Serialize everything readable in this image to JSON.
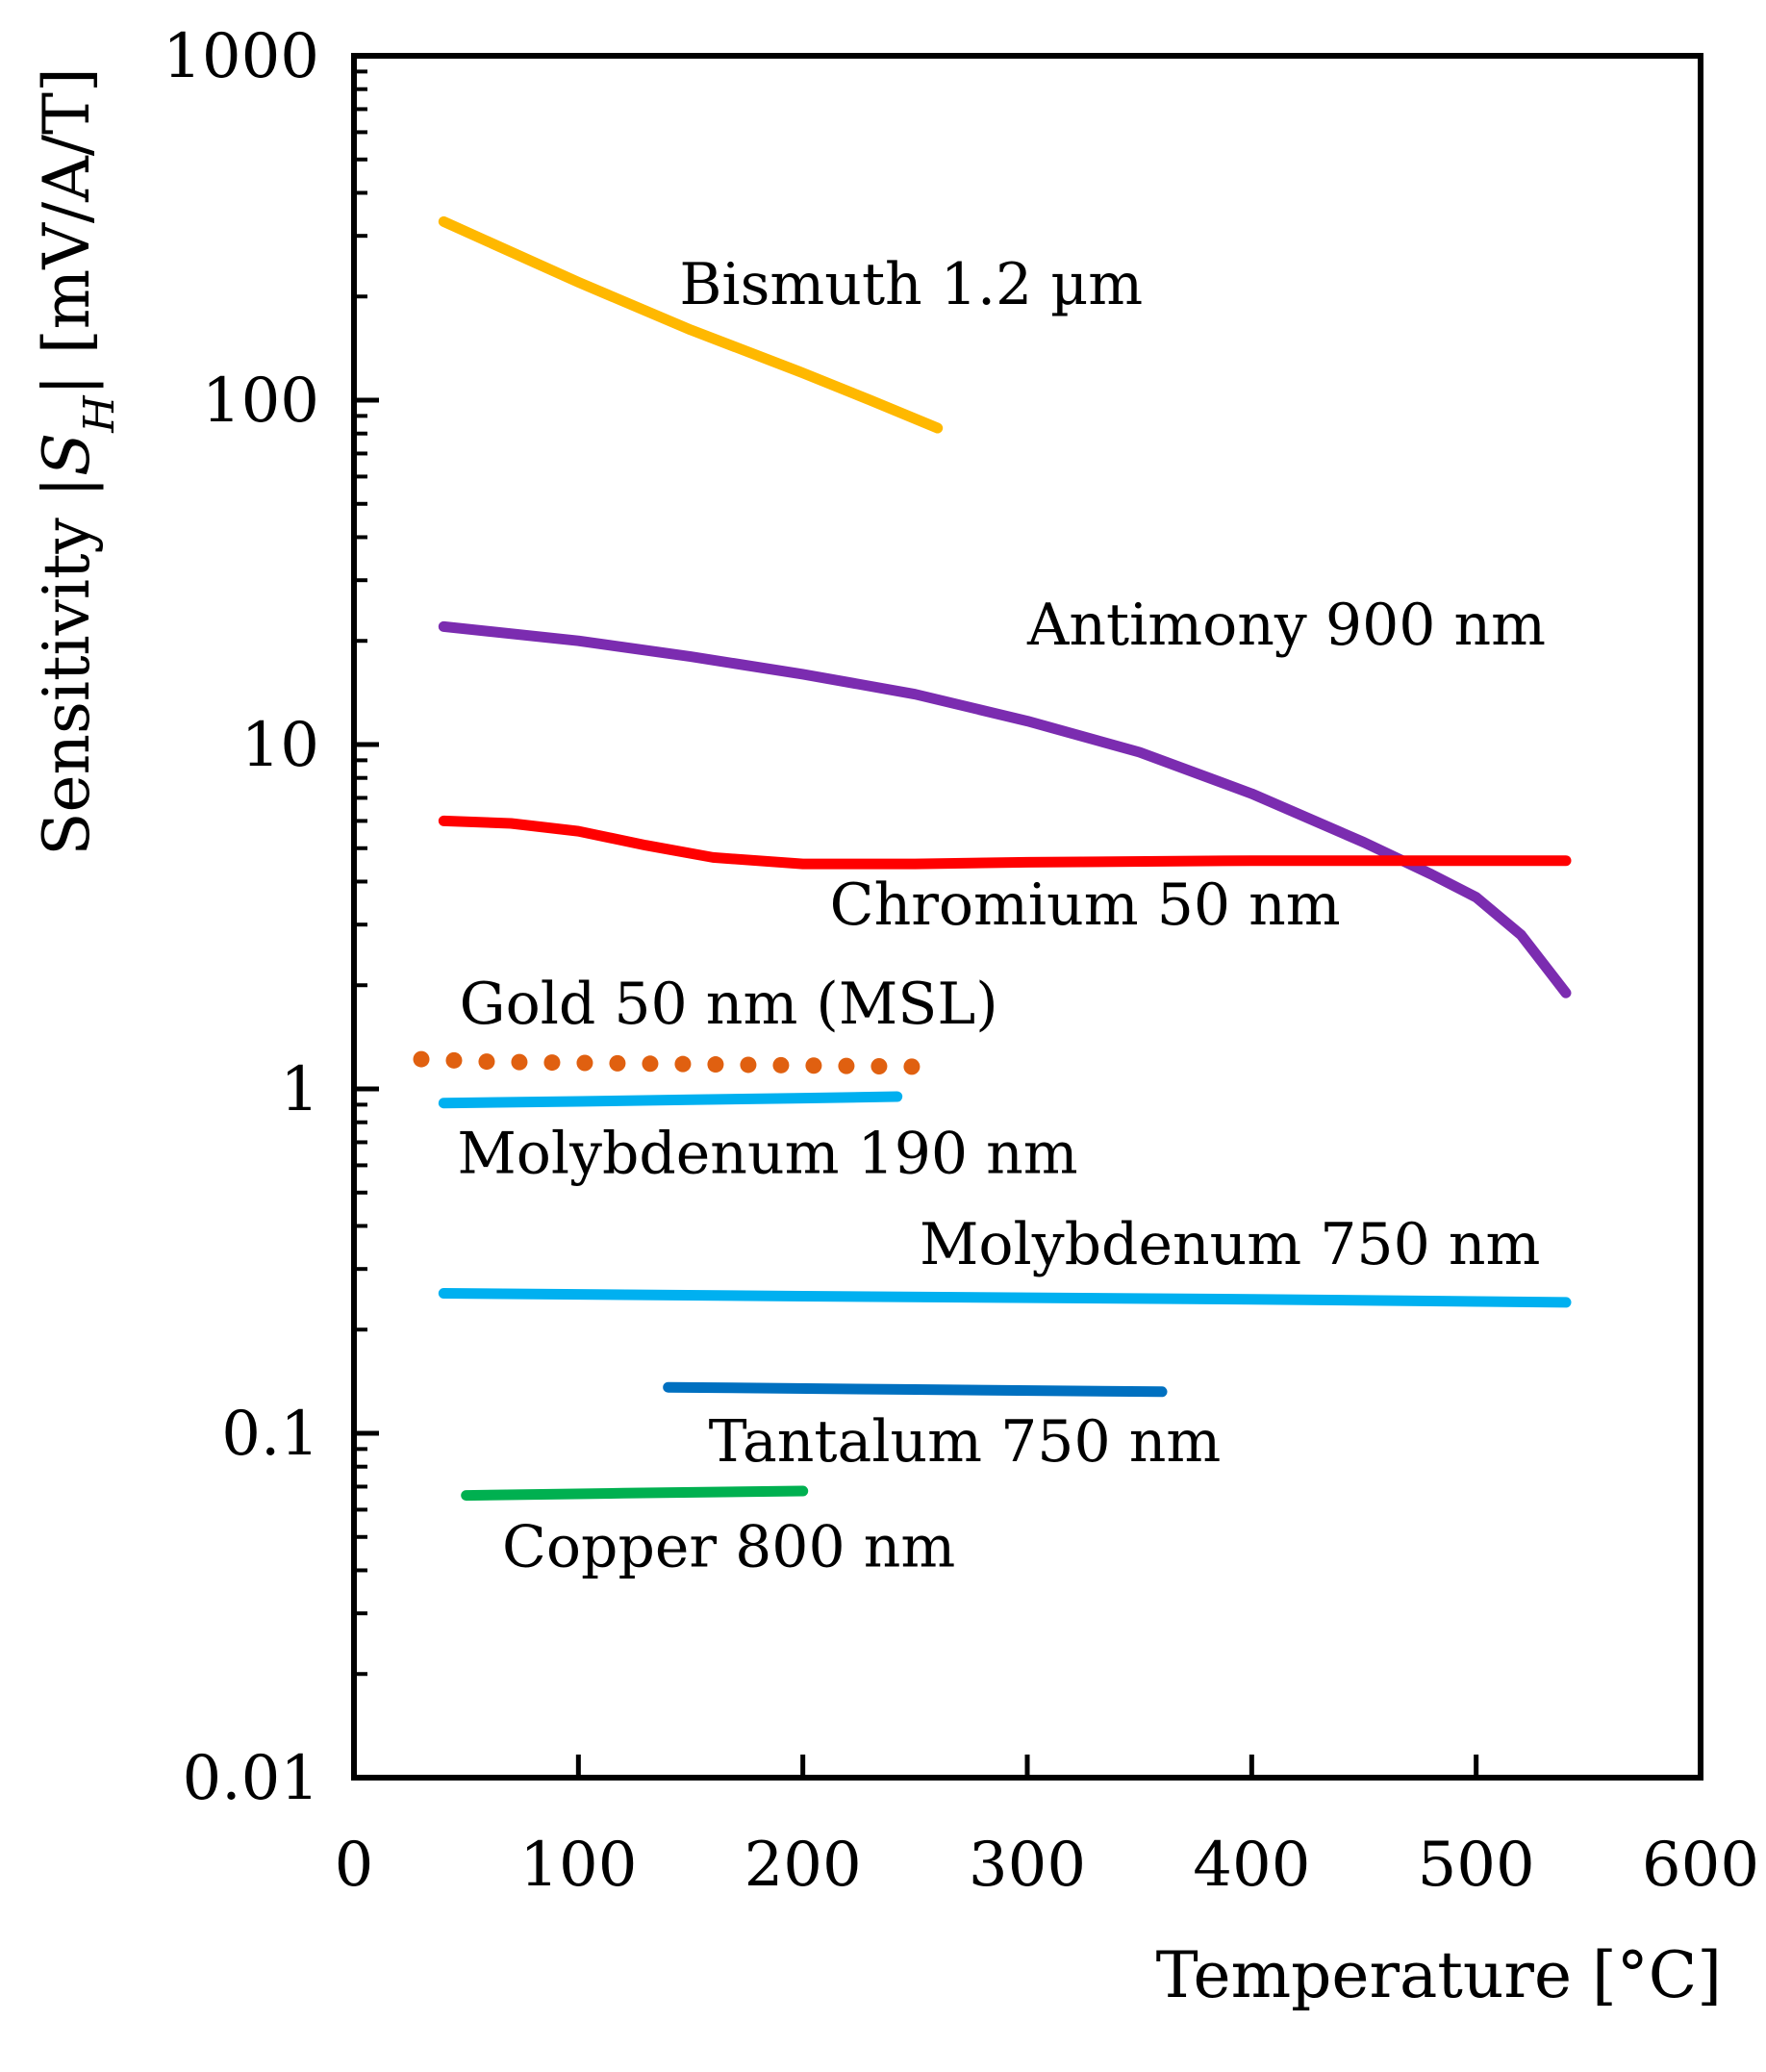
{
  "chart_data": {
    "type": "line",
    "title": "",
    "xlabel": "Temperature [°C]",
    "ylabel_parts": [
      "Sensitivity |",
      "S",
      "H",
      "| [mV/A/T]"
    ],
    "yscale": "log",
    "xlim": [
      0,
      600
    ],
    "ylim": [
      0.01,
      1000
    ],
    "x_ticks": [
      "0",
      "100",
      "200",
      "300",
      "400",
      "500",
      "600"
    ],
    "x_tick_values": [
      0,
      100,
      200,
      300,
      400,
      500,
      600
    ],
    "y_ticks": [
      "0.01",
      "0.1",
      "1",
      "10",
      "100",
      "1000"
    ],
    "y_tick_values": [
      0.01,
      0.1,
      1,
      10,
      100,
      1000
    ],
    "series": [
      {
        "name": "Bismuth 1.2 µm",
        "color": "#FFB800",
        "style": "solid",
        "x": [
          40,
          100,
          150,
          200,
          230,
          260
        ],
        "y": [
          330,
          220,
          160,
          120,
          100,
          83
        ],
        "label_anchor": [
          145,
          190
        ]
      },
      {
        "name": "Antimony 900 nm",
        "color": "#7B2CB0",
        "style": "solid",
        "x": [
          40,
          100,
          150,
          200,
          250,
          300,
          350,
          400,
          450,
          480,
          500,
          520,
          540
        ],
        "y": [
          22,
          20,
          18,
          16,
          14,
          11.7,
          9.5,
          7.2,
          5.2,
          4.2,
          3.6,
          2.8,
          1.9
        ],
        "label_anchor": [
          300,
          19.5
        ]
      },
      {
        "name": "Chromium 50 nm",
        "color": "#FF0000",
        "style": "solid",
        "x": [
          40,
          70,
          100,
          130,
          160,
          200,
          250,
          300,
          400,
          500,
          540
        ],
        "y": [
          6.0,
          5.9,
          5.6,
          5.1,
          4.7,
          4.5,
          4.5,
          4.55,
          4.6,
          4.6,
          4.6
        ],
        "label_anchor": [
          212,
          3.0
        ]
      },
      {
        "name": "Gold 50 nm (MSL)",
        "color": "#E06010",
        "style": "dotted",
        "x": [
          30,
          60,
          100,
          150,
          200,
          250
        ],
        "y": [
          1.22,
          1.2,
          1.19,
          1.18,
          1.17,
          1.16
        ],
        "label_anchor": [
          47,
          1.55
        ]
      },
      {
        "name": "Molybdenum 190 nm",
        "color": "#00B0F0",
        "style": "solid",
        "x": [
          40,
          100,
          150,
          200,
          242
        ],
        "y": [
          0.91,
          0.92,
          0.93,
          0.94,
          0.95
        ],
        "label_anchor": [
          46,
          0.57
        ]
      },
      {
        "name": "Molybdenum 750 nm",
        "color": "#00B0F0",
        "style": "solid",
        "x": [
          40,
          200,
          400,
          540
        ],
        "y": [
          0.255,
          0.25,
          0.245,
          0.24
        ],
        "label_anchor": [
          252,
          0.31
        ]
      },
      {
        "name": "Tantalum 750 nm",
        "color": "#0070C0",
        "style": "solid",
        "x": [
          140,
          250,
          360
        ],
        "y": [
          0.136,
          0.134,
          0.132
        ],
        "label_anchor": [
          158,
          0.083
        ]
      },
      {
        "name": "Copper 800 nm",
        "color": "#00B050",
        "style": "solid",
        "x": [
          50,
          120,
          200
        ],
        "y": [
          0.066,
          0.067,
          0.068
        ],
        "label_anchor": [
          66,
          0.041
        ]
      }
    ]
  }
}
